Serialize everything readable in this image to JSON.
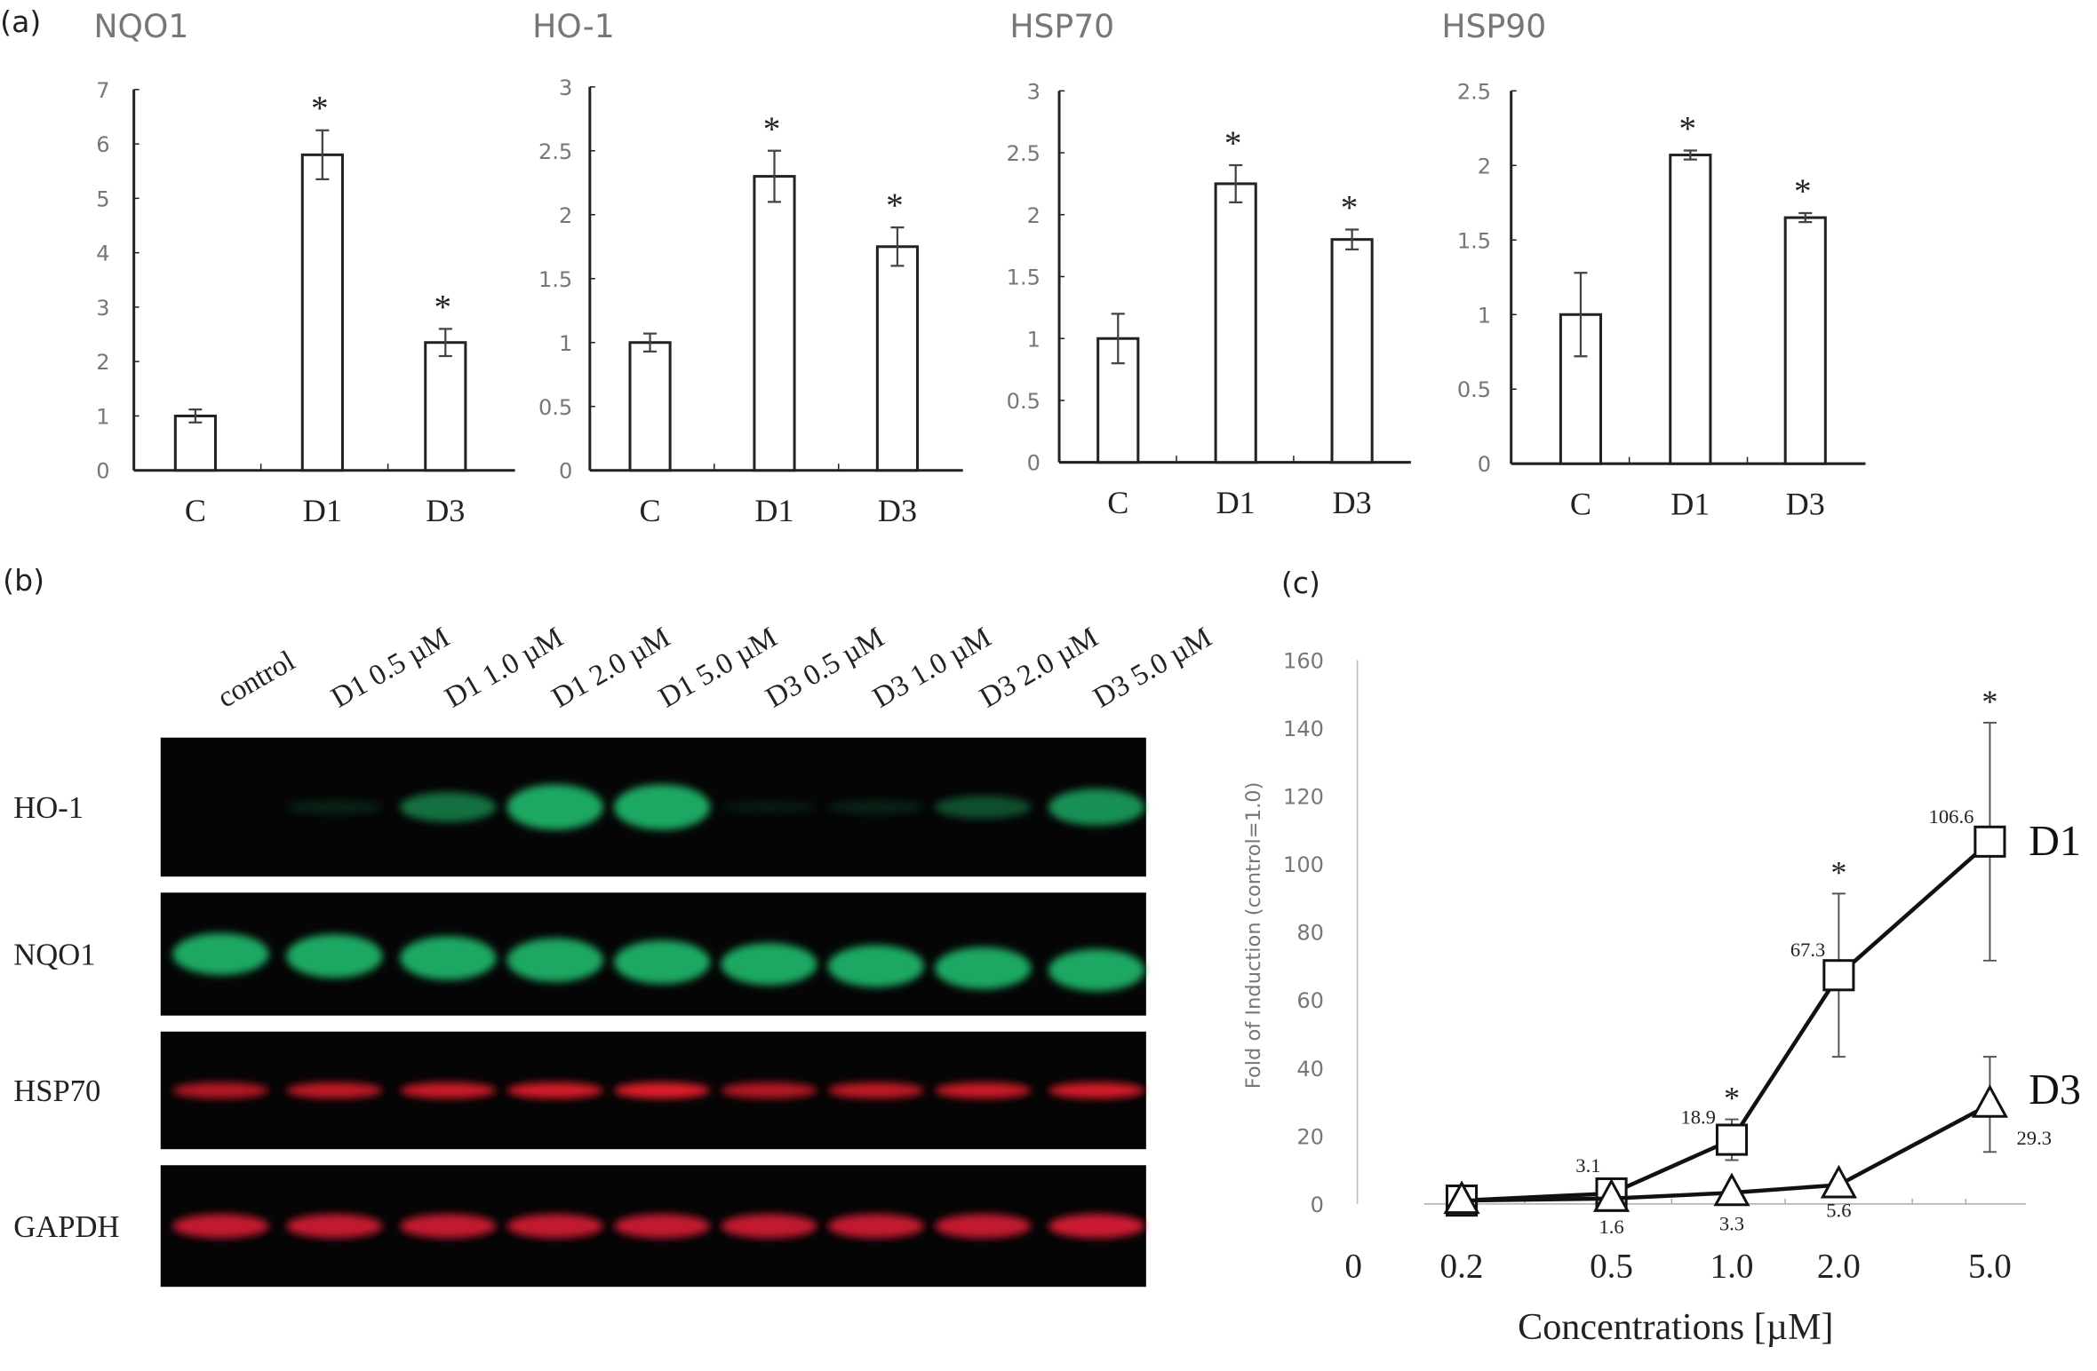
{
  "panel_labels": {
    "a": "(a)",
    "b": "(b)",
    "c": "(c)"
  },
  "chart_data": [
    {
      "type": "bar",
      "title": "NQO1",
      "categories": [
        "C",
        "D1",
        "D3"
      ],
      "values": [
        1.0,
        5.8,
        2.35
      ],
      "errors": [
        0.12,
        0.45,
        0.25
      ],
      "significant": [
        false,
        true,
        true
      ],
      "ylim": [
        0,
        7
      ],
      "yticks": [
        0,
        1,
        2,
        3,
        4,
        5,
        6,
        7
      ]
    },
    {
      "type": "bar",
      "title": "HO-1",
      "categories": [
        "C",
        "D1",
        "D3"
      ],
      "values": [
        1.0,
        2.3,
        1.75
      ],
      "errors": [
        0.07,
        0.2,
        0.15
      ],
      "significant": [
        false,
        true,
        true
      ],
      "ylim": [
        0,
        3
      ],
      "yticks": [
        0,
        0.5,
        1,
        1.5,
        2,
        2.5,
        3
      ]
    },
    {
      "type": "bar",
      "title": "HSP70",
      "categories": [
        "C",
        "D1",
        "D3"
      ],
      "values": [
        1.0,
        2.25,
        1.8
      ],
      "errors": [
        0.2,
        0.15,
        0.08
      ],
      "significant": [
        false,
        true,
        true
      ],
      "ylim": [
        0,
        3
      ],
      "yticks": [
        0,
        0.5,
        1,
        1.5,
        2,
        2.5,
        3
      ]
    },
    {
      "type": "bar",
      "title": "HSP90",
      "categories": [
        "C",
        "D1",
        "D3"
      ],
      "values": [
        1.0,
        2.07,
        1.65
      ],
      "errors": [
        0.28,
        0.03,
        0.03
      ],
      "significant": [
        false,
        true,
        true
      ],
      "ylim": [
        0,
        2.5
      ],
      "yticks": [
        0,
        0.5,
        1,
        1.5,
        2,
        2.5
      ]
    },
    {
      "type": "line",
      "xlabel": "Concentrations [µM]",
      "ylabel": "Fold of Induction (control=1.0)",
      "x_origin_label": "0",
      "x": [
        "0.2",
        "0.5",
        "1.0",
        "2.0",
        "5.0"
      ],
      "ylim": [
        0,
        160
      ],
      "yticks": [
        0,
        20,
        40,
        60,
        80,
        100,
        120,
        140,
        160
      ],
      "series": [
        {
          "name": "D1",
          "marker": "square",
          "values": [
            1.0,
            3.1,
            18.9,
            67.3,
            106.6
          ],
          "errors": [
            0,
            0,
            6,
            24,
            35
          ],
          "labels": [
            "",
            "3.1",
            "18.9",
            "67.3",
            "106.6"
          ],
          "significant": [
            false,
            false,
            true,
            true,
            true
          ]
        },
        {
          "name": "D3",
          "marker": "triangle",
          "values": [
            1.0,
            1.6,
            3.3,
            5.6,
            29.3
          ],
          "errors": [
            0,
            0,
            0,
            0,
            14
          ],
          "labels": [
            "",
            "1.6",
            "3.3",
            "5.6",
            "29.3"
          ],
          "significant": [
            false,
            false,
            false,
            false,
            false
          ]
        }
      ]
    }
  ],
  "blot": {
    "lanes": [
      "control",
      "D1 0.5 µM",
      "D1 1.0 µM",
      "D1 2.0 µM",
      "D1 5.0 µM",
      "D3 0.5 µM",
      "D3 1.0 µM",
      "D3 2.0 µM",
      "D3 5.0 µM"
    ],
    "rows": [
      {
        "label": "HO-1",
        "color": "#1fa862",
        "intensity": [
          0,
          0.08,
          0.55,
          1,
          1,
          0.03,
          0.08,
          0.35,
          0.75
        ]
      },
      {
        "label": "NQO1",
        "color": "#1fa862",
        "intensity": [
          0.9,
          0.95,
          0.95,
          0.95,
          0.95,
          0.9,
          0.9,
          0.9,
          0.9
        ]
      },
      {
        "label": "HSP70",
        "color": "#e01f2a",
        "intensity": [
          0.7,
          0.75,
          0.8,
          0.85,
          0.9,
          0.7,
          0.75,
          0.8,
          0.85
        ]
      },
      {
        "label": "GAPDH",
        "color": "#d81d35",
        "intensity": [
          0.8,
          0.8,
          0.8,
          0.8,
          0.8,
          0.8,
          0.8,
          0.8,
          0.85
        ]
      }
    ]
  }
}
